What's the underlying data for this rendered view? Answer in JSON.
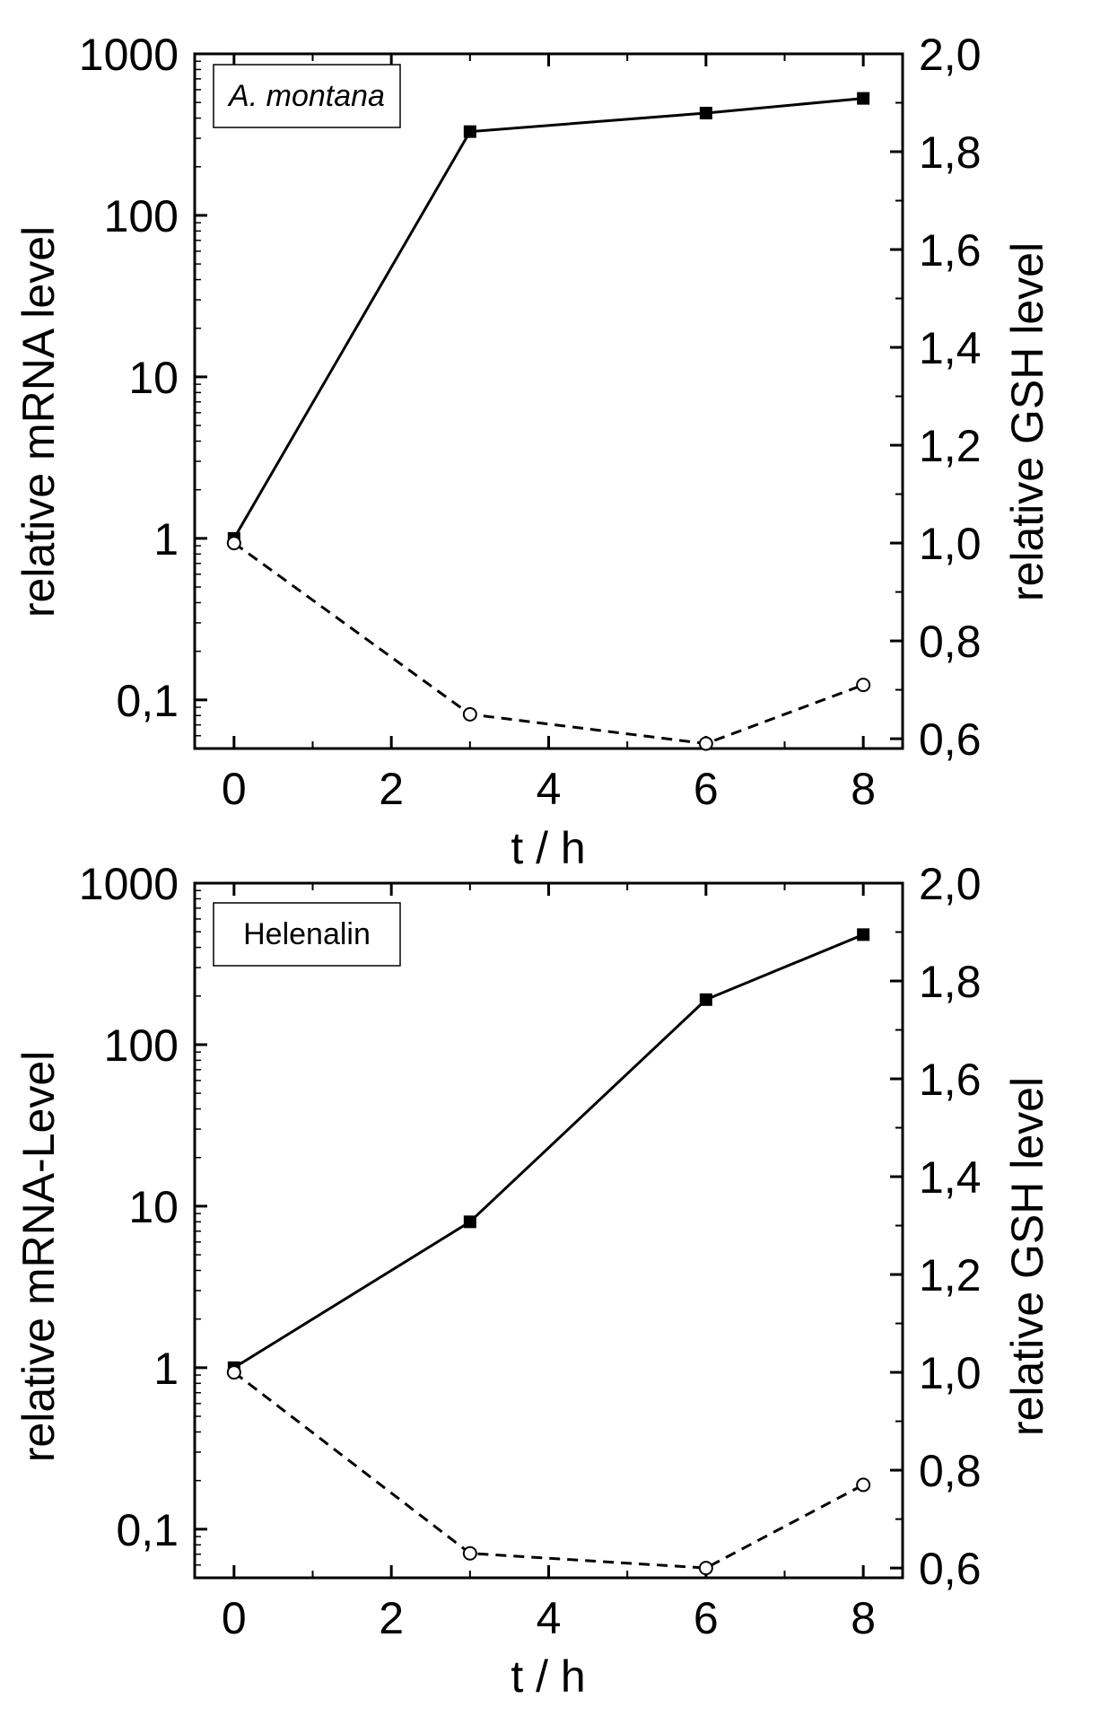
{
  "colors": {
    "axis": "#000000",
    "mrna": "#000000",
    "gsh_marker_fill": "#ffffff"
  },
  "chart_data": [
    {
      "type": "line",
      "legend": "A. montana",
      "legend_italic": true,
      "xlabel": "t / h",
      "ylabel_left": "relative mRNA level",
      "ylabel_right": "relative GSH level",
      "x_ticks": [
        "0",
        "2",
        "4",
        "6",
        "8"
      ],
      "x_range": [
        -0.5,
        8.5
      ],
      "y_left_scale": "log",
      "y_left_ticks": [
        "1000",
        "100",
        "10",
        "1",
        "0,1"
      ],
      "y_left_range": [
        0.05,
        1000
      ],
      "y_right_ticks": [
        "2,0",
        "1,8",
        "1,6",
        "1,4",
        "1,2",
        "1,0",
        "0,8",
        "0,6"
      ],
      "y_right_range": [
        0.58,
        2.0
      ],
      "series": [
        {
          "name": "relative mRNA level",
          "axis": "left",
          "style": "solid",
          "marker": "filled-square",
          "x": [
            0,
            3,
            6,
            8
          ],
          "values": [
            1,
            330,
            430,
            530
          ]
        },
        {
          "name": "relative GSH level",
          "axis": "right",
          "style": "dashed",
          "marker": "open-circle",
          "x": [
            0,
            3,
            6,
            8
          ],
          "values": [
            1.0,
            0.65,
            0.59,
            0.71
          ]
        }
      ]
    },
    {
      "type": "line",
      "legend": "Helenalin",
      "legend_italic": false,
      "xlabel": "t / h",
      "ylabel_left": "relative mRNA-Level",
      "ylabel_right": "relative GSH level",
      "x_ticks": [
        "0",
        "2",
        "4",
        "6",
        "8"
      ],
      "x_range": [
        -0.5,
        8.5
      ],
      "y_left_scale": "log",
      "y_left_ticks": [
        "1000",
        "100",
        "10",
        "1",
        "0,1"
      ],
      "y_left_range": [
        0.05,
        1000
      ],
      "y_right_ticks": [
        "2,0",
        "1,8",
        "1,6",
        "1,4",
        "1,2",
        "1,0",
        "0,8",
        "0,6"
      ],
      "y_right_range": [
        0.58,
        2.0
      ],
      "series": [
        {
          "name": "relative mRNA-Level",
          "axis": "left",
          "style": "solid",
          "marker": "filled-square",
          "x": [
            0,
            3,
            6,
            8
          ],
          "values": [
            1,
            8,
            190,
            480
          ]
        },
        {
          "name": "relative GSH level",
          "axis": "right",
          "style": "dashed",
          "marker": "open-circle",
          "x": [
            0,
            3,
            6,
            8
          ],
          "values": [
            1.0,
            0.63,
            0.6,
            0.77
          ]
        }
      ]
    }
  ]
}
